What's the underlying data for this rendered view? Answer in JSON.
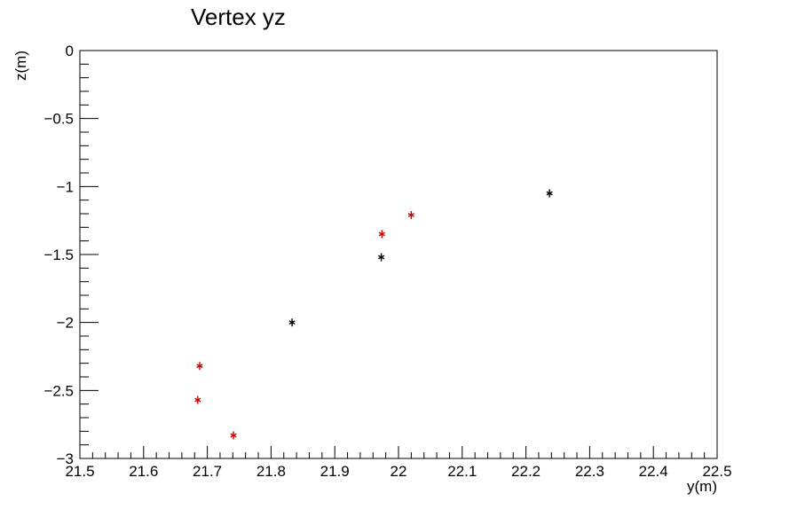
{
  "chart_data": {
    "type": "scatter",
    "title": "Vertex yz",
    "xlabel": "y(m)",
    "ylabel": "z(m)",
    "xlim": [
      21.5,
      22.5
    ],
    "ylim": [
      -3,
      0
    ],
    "grid": false,
    "x_ticks": [
      "21.5",
      "21.6",
      "21.7",
      "21.8",
      "21.9",
      "22",
      "22.1",
      "22.2",
      "22.3",
      "22.4",
      "22.5"
    ],
    "y_ticks": [
      "0",
      "−0.5",
      "−1",
      "−1.5",
      "−2",
      "−2.5",
      "−3"
    ],
    "series": [
      {
        "color": "#000000",
        "marker": "asterisk",
        "points": [
          {
            "x": 21.833,
            "y": -2.0
          },
          {
            "x": 21.973,
            "y": -1.52
          },
          {
            "x": 22.237,
            "y": -1.05
          }
        ]
      },
      {
        "color": "#cc0000",
        "marker": "asterisk",
        "points": [
          {
            "x": 21.688,
            "y": -2.32
          },
          {
            "x": 21.685,
            "y": -2.57
          },
          {
            "x": 21.741,
            "y": -2.83
          },
          {
            "x": 21.974,
            "y": -1.35
          },
          {
            "x": 22.02,
            "y": -1.21
          }
        ]
      }
    ]
  }
}
